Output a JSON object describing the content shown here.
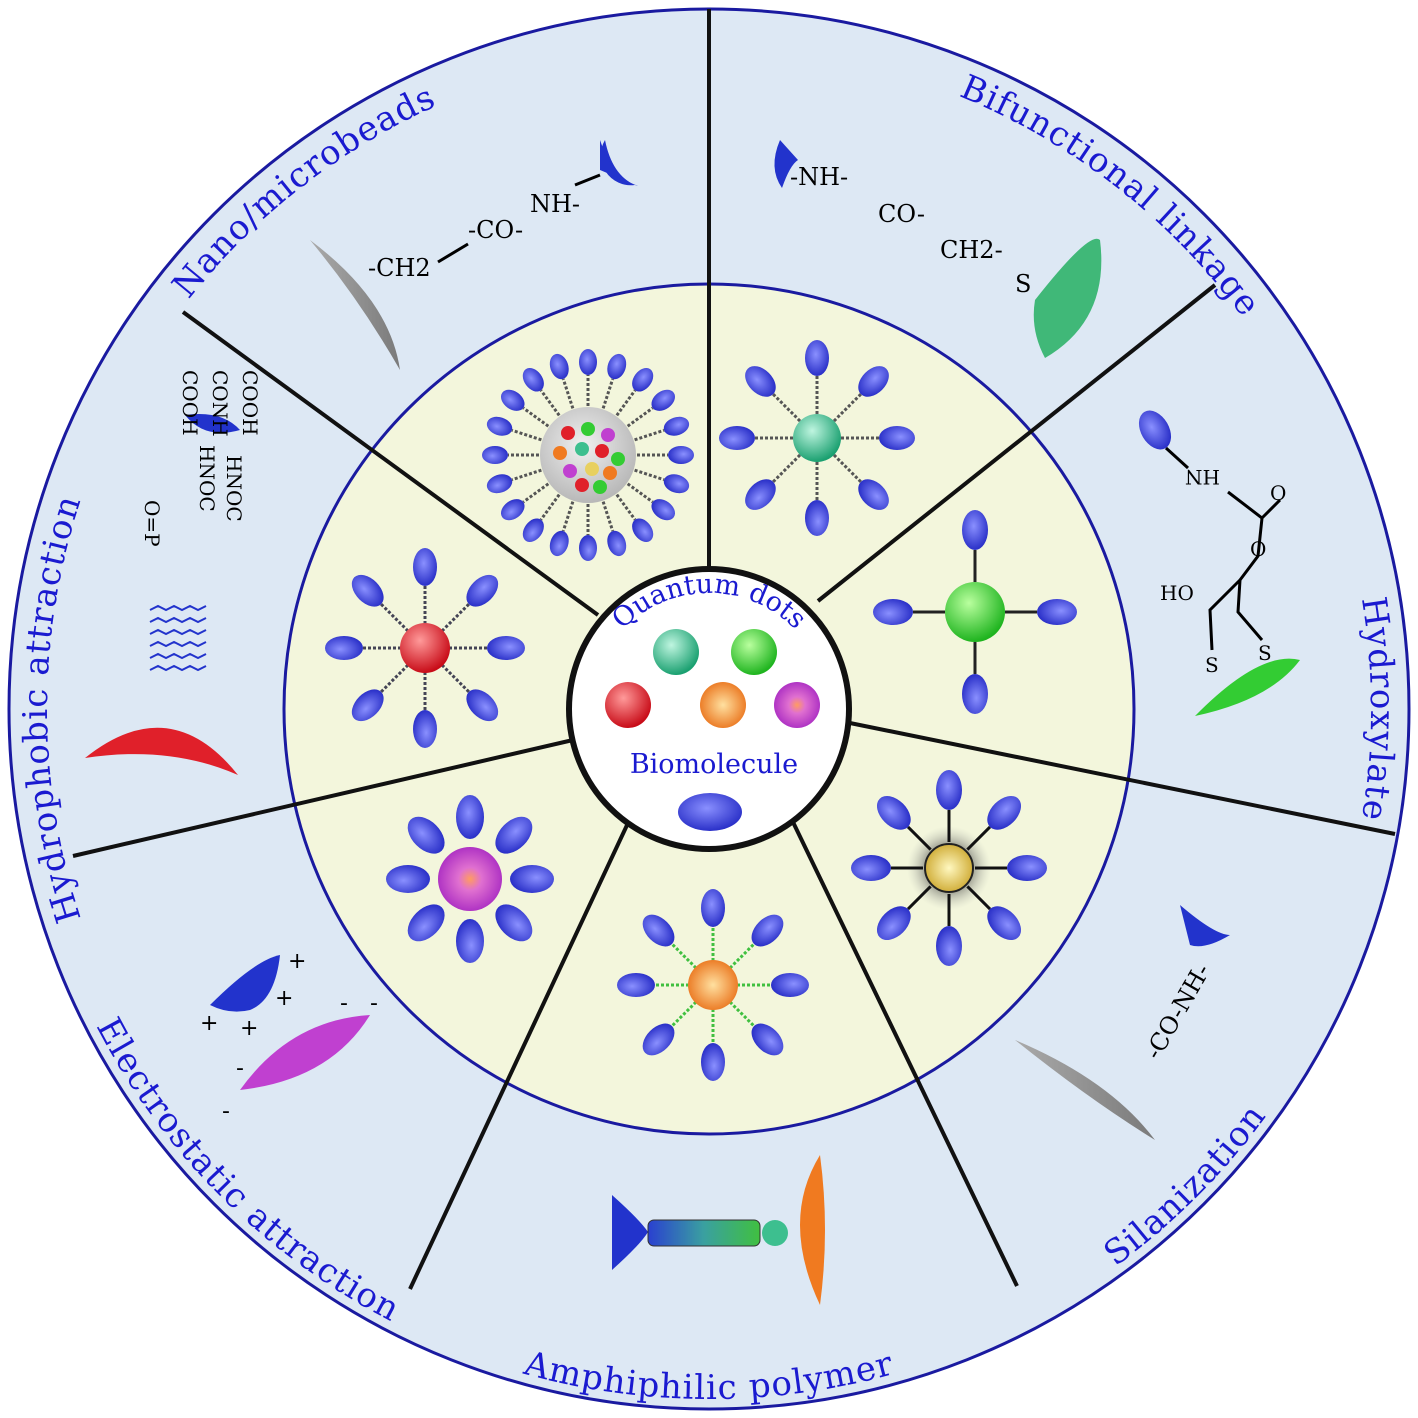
{
  "center": {
    "title": "Quantum dots",
    "subtitle": "Biomolecule"
  },
  "segments": [
    {
      "label": "Nano/microbeads",
      "chemistry": [
        "-CH2",
        "-CO-",
        "NH-"
      ]
    },
    {
      "label": "Bifunctional linkage",
      "chemistry": [
        "-NH-",
        "CO-",
        "CH2-",
        "S"
      ]
    },
    {
      "label": "Hydroxylate",
      "chemistry": [
        "HN",
        "O",
        "O",
        "HO",
        "S",
        "S"
      ]
    },
    {
      "label": "Silanization",
      "chemistry": [
        "-CO-NH-"
      ]
    },
    {
      "label": "Amphiphilic polymer",
      "chemistry": []
    },
    {
      "label": "Electrostatic attraction",
      "chemistry": [
        "+",
        "+",
        "+",
        "+",
        "-",
        "-",
        "-",
        "-"
      ]
    },
    {
      "label": "Hydrophobic attraction",
      "chemistry": [
        "O=P",
        "HNOC",
        "HNOC",
        "COOH",
        "CONH",
        "COOH"
      ]
    }
  ],
  "colors": {
    "outer_ring": "#dde8f4",
    "inner_ring": "#f3f6dc",
    "label_text": "#1a1ad0",
    "biomolecule": "#4a55e0",
    "qd_teal": "#3dbf8f",
    "qd_green": "#33cc33",
    "qd_red": "#e0202a",
    "qd_orange": "#f07a20",
    "qd_purple": "#c040d0",
    "qd_yellow": "#e8d060"
  }
}
